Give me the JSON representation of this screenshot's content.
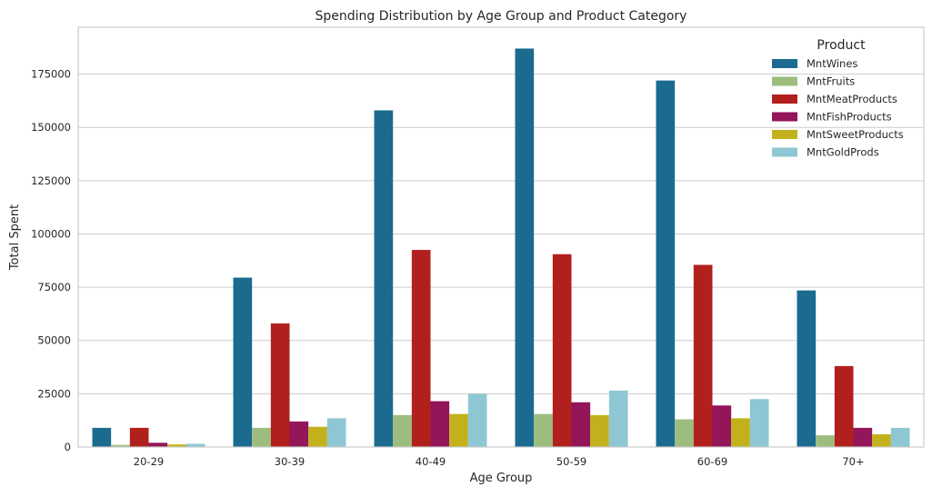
{
  "chart_data": {
    "type": "bar",
    "title": "Spending Distribution by Age Group and Product Category",
    "xlabel": "Age Group",
    "ylabel": "Total Spent",
    "categories": [
      "20-29",
      "30-39",
      "40-49",
      "50-59",
      "60-69",
      "70+"
    ],
    "ylim": [
      0,
      197000
    ],
    "yticks": [
      0,
      25000,
      50000,
      75000,
      100000,
      125000,
      150000,
      175000
    ],
    "ytick_labels": [
      "0",
      "25000",
      "50000",
      "75000",
      "100000",
      "125000",
      "150000",
      "175000"
    ],
    "grid": "horizontal",
    "legend": {
      "title": "Product",
      "placement": "top-right"
    },
    "series": [
      {
        "name": "MntWines",
        "color": "#1b6a8f",
        "values": [
          9000,
          79500,
          158000,
          187000,
          172000,
          73500
        ]
      },
      {
        "name": "MntFruits",
        "color": "#9cbd7e",
        "values": [
          1000,
          9000,
          15000,
          15500,
          13000,
          5500
        ]
      },
      {
        "name": "MntMeatProducts",
        "color": "#b1201d",
        "values": [
          9000,
          58000,
          92500,
          90500,
          85500,
          38000
        ]
      },
      {
        "name": "MntFishProducts",
        "color": "#93155a",
        "values": [
          2000,
          12000,
          21500,
          21000,
          19500,
          9000
        ]
      },
      {
        "name": "MntSweetProducts",
        "color": "#c2b11c",
        "values": [
          1200,
          9500,
          15500,
          15000,
          13500,
          6000
        ]
      },
      {
        "name": "MntGoldProds",
        "color": "#8ec7d3",
        "values": [
          1500,
          13500,
          25000,
          26500,
          22500,
          9000
        ]
      }
    ]
  }
}
